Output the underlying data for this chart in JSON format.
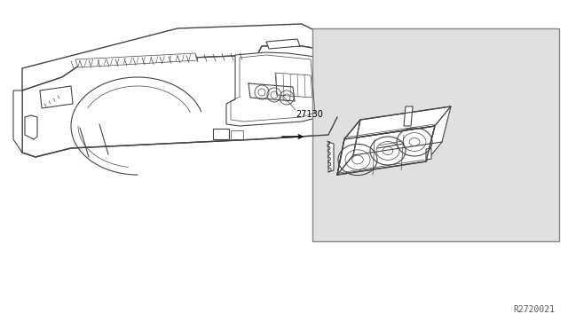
{
  "bg_color": "#ffffff",
  "line_color": "#444444",
  "box_bg": "#e0e0e0",
  "box_edge": "#888888",
  "part_number": "27130",
  "diagram_id": "R2720021",
  "lw_thin": 0.5,
  "lw_med": 0.8,
  "lw_thick": 1.0
}
